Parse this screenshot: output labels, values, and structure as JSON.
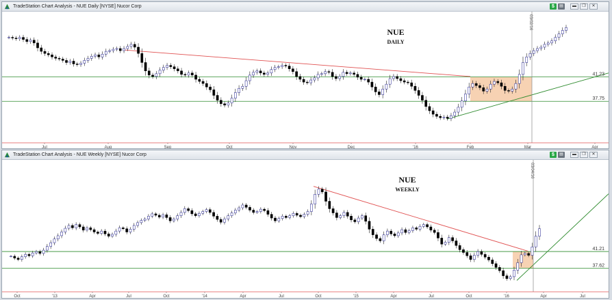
{
  "app": {
    "daily_title": "TradeStation Chart Analysis - NUE Daily [NYSE] Nucor Corp",
    "weekly_title": "TradeStation Chart Analysis - NUE Weekly [NYSE] Nucor Corp",
    "dollar_badge": "$",
    "badge_icon": "list-icon",
    "window_buttons": [
      "minimize-icon",
      "restore-icon",
      "close-icon"
    ]
  },
  "colors": {
    "trendline": "#e05050",
    "support": "#2e8b2e",
    "highlight": "#f5c7a0",
    "candle_up_edge": "#1a1a8c",
    "candle_down": "#000000",
    "vline": "#888888"
  },
  "chart_data": [
    {
      "type": "candlestick",
      "title": "NUE",
      "subtitle": "DAILY",
      "x_ticks": [
        "Jul",
        "Aug",
        "Sep",
        "Oct",
        "Nov",
        "Dec",
        "'16",
        "Feb",
        "Mar",
        "Apr"
      ],
      "horizontal_levels": [
        {
          "value": 41.23,
          "label": "41.23"
        },
        {
          "value": 37.75,
          "label": "37.75"
        }
      ],
      "vertical_marker": {
        "label": "03/02/16"
      },
      "ylim": [
        32,
        50
      ],
      "close_series": [
        46.9,
        46.8,
        46.7,
        46.9,
        46.6,
        46.3,
        46.5,
        46.1,
        45.4,
        44.9,
        44.6,
        44.4,
        44.1,
        43.9,
        43.8,
        43.6,
        43.3,
        43.5,
        43.1,
        43.0,
        43.2,
        43.6,
        43.9,
        44.2,
        44.4,
        44.1,
        44.5,
        44.9,
        45.0,
        45.2,
        45.3,
        45.0,
        45.3,
        45.6,
        45.9,
        45.5,
        44.6,
        43.3,
        42.1,
        41.5,
        41.3,
        41.7,
        42.2,
        42.6,
        42.9,
        42.7,
        42.4,
        42.1,
        41.6,
        41.5,
        41.8,
        41.5,
        40.9,
        40.6,
        40.3,
        39.8,
        39.4,
        38.6,
        37.9,
        37.4,
        37.2,
        37.5,
        38.2,
        39.0,
        39.6,
        39.9,
        40.7,
        41.5,
        41.9,
        42.1,
        41.8,
        41.6,
        41.8,
        42.3,
        42.6,
        42.7,
        42.9,
        42.8,
        42.4,
        42.0,
        41.3,
        40.9,
        40.5,
        40.4,
        40.8,
        41.1,
        41.6,
        41.7,
        42.0,
        41.9,
        41.3,
        41.0,
        41.3,
        41.9,
        41.7,
        41.8,
        41.6,
        41.2,
        40.9,
        40.9,
        40.5,
        39.8,
        39.1,
        38.7,
        39.5,
        40.2,
        41.0,
        41.3,
        41.0,
        40.7,
        40.5,
        40.4,
        39.9,
        39.3,
        38.6,
        37.9,
        37.0,
        36.4,
        35.9,
        35.6,
        35.4,
        35.5,
        35.3,
        35.7,
        36.2,
        36.9,
        37.8,
        38.8,
        39.8,
        40.3,
        40.0,
        39.7,
        39.2,
        39.5,
        40.2,
        40.6,
        40.4,
        39.9,
        39.3,
        39.2,
        39.5,
        40.3,
        41.6,
        43.3,
        44.1,
        44.6,
        45.0,
        45.3,
        45.5,
        45.9,
        46.1,
        46.4,
        46.9,
        47.4,
        47.9,
        48.3
      ]
    },
    {
      "type": "candlestick",
      "title": "NUE",
      "subtitle": "WEEKLY",
      "x_ticks": [
        "Oct",
        "'13",
        "Apr",
        "Jul",
        "Oct",
        "'14",
        "Apr",
        "Jul",
        "Oct",
        "'15",
        "Apr",
        "Jul",
        "Oct",
        "'16",
        "Apr",
        "Jul"
      ],
      "horizontal_levels": [
        {
          "value": 41.21,
          "label": "41.21"
        },
        {
          "value": 37.62,
          "label": "37.62"
        }
      ],
      "vertical_marker": {
        "label": "03/04/16"
      },
      "ylim": [
        33,
        60
      ],
      "close_series": [
        40.2,
        39.8,
        39.5,
        40.1,
        40.6,
        40.3,
        40.9,
        41.2,
        40.8,
        41.5,
        42.3,
        43.1,
        43.9,
        44.6,
        45.4,
        46.2,
        46.8,
        46.3,
        47.0,
        46.5,
        45.8,
        46.3,
        45.9,
        45.4,
        45.1,
        45.6,
        45.0,
        44.5,
        44.9,
        45.6,
        46.3,
        46.1,
        45.4,
        46.0,
        46.8,
        47.4,
        47.9,
        48.2,
        48.8,
        49.3,
        49.0,
        48.6,
        49.1,
        48.5,
        47.8,
        48.2,
        48.9,
        49.6,
        50.4,
        50.0,
        49.3,
        48.9,
        49.4,
        49.8,
        50.2,
        49.6,
        48.8,
        48.1,
        47.5,
        48.2,
        48.9,
        49.5,
        50.1,
        50.6,
        51.2,
        50.7,
        50.1,
        49.6,
        49.8,
        50.3,
        50.0,
        49.2,
        48.4,
        47.8,
        48.3,
        48.8,
        48.5,
        48.9,
        49.4,
        49.0,
        48.7,
        49.2,
        49.8,
        51.4,
        53.5,
        54.6,
        54.0,
        52.0,
        50.4,
        49.5,
        48.5,
        48.9,
        49.6,
        48.8,
        48.0,
        47.6,
        48.4,
        48.9,
        47.7,
        46.0,
        44.8,
        44.0,
        43.5,
        44.8,
        45.6,
        45.0,
        44.6,
        45.2,
        45.9,
        45.3,
        45.7,
        46.3,
        46.0,
        46.6,
        47.0,
        46.5,
        45.8,
        45.3,
        44.1,
        42.8,
        43.2,
        44.2,
        43.5,
        42.5,
        41.6,
        41.0,
        40.3,
        39.5,
        40.4,
        41.2,
        40.6,
        40.0,
        39.4,
        38.6,
        37.8,
        37.1,
        36.0,
        35.4,
        35.8,
        37.2,
        38.8,
        40.5,
        40.8,
        40.4,
        42.2,
        44.5,
        46.1
      ]
    }
  ]
}
